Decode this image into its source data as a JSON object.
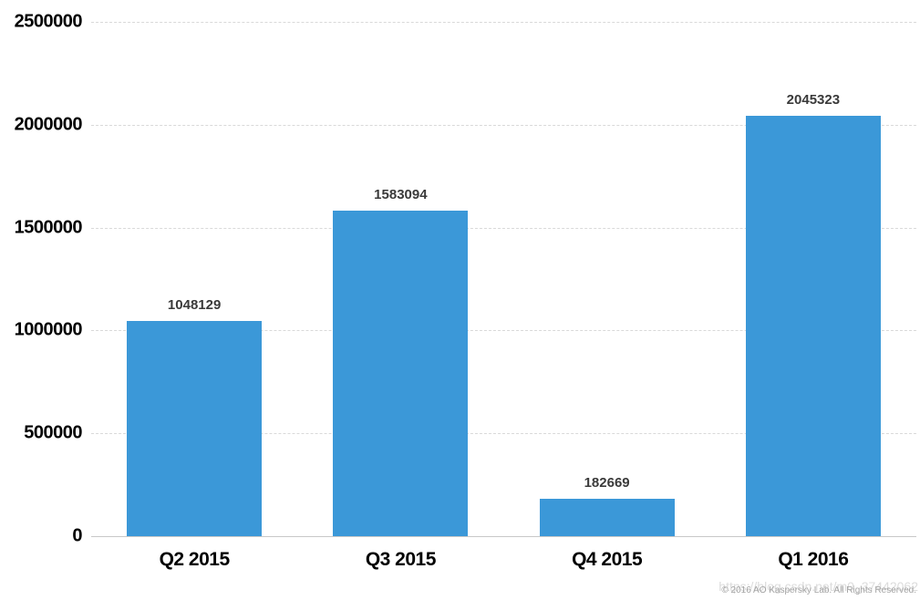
{
  "chart_data": {
    "type": "bar",
    "categories": [
      "Q2 2015",
      "Q3 2015",
      "Q4 2015",
      "Q1 2016"
    ],
    "values": [
      1048129,
      1583094,
      182669,
      2045323
    ],
    "value_labels": [
      "1048129",
      "1583094",
      "182669",
      "2045323"
    ],
    "title": "",
    "xlabel": "",
    "ylabel": "",
    "ylim": [
      0,
      2500000
    ],
    "yticks": [
      0,
      500000,
      1000000,
      1500000,
      2000000,
      2500000
    ],
    "ytick_labels": [
      "0",
      "500000",
      "1000000",
      "1500000",
      "2000000",
      "2500000"
    ],
    "grid": "horizontal-dashed",
    "legend": "none",
    "bar_color": "#3B98D8"
  },
  "colors": {
    "bar": "#3B98D8",
    "gridline": "#d9d9d9",
    "baseline": "#c8c8c8",
    "axis_text": "#000000",
    "value_text": "#3a3a3a",
    "watermark_text": "#dcdcdc",
    "copyright_text": "#a3a3a3"
  },
  "footer": {
    "watermark": "https://blog.csdn.net/m0_37442062",
    "copyright": "© 2016 AO Kaspersky Lab. All Rights Reserved."
  }
}
